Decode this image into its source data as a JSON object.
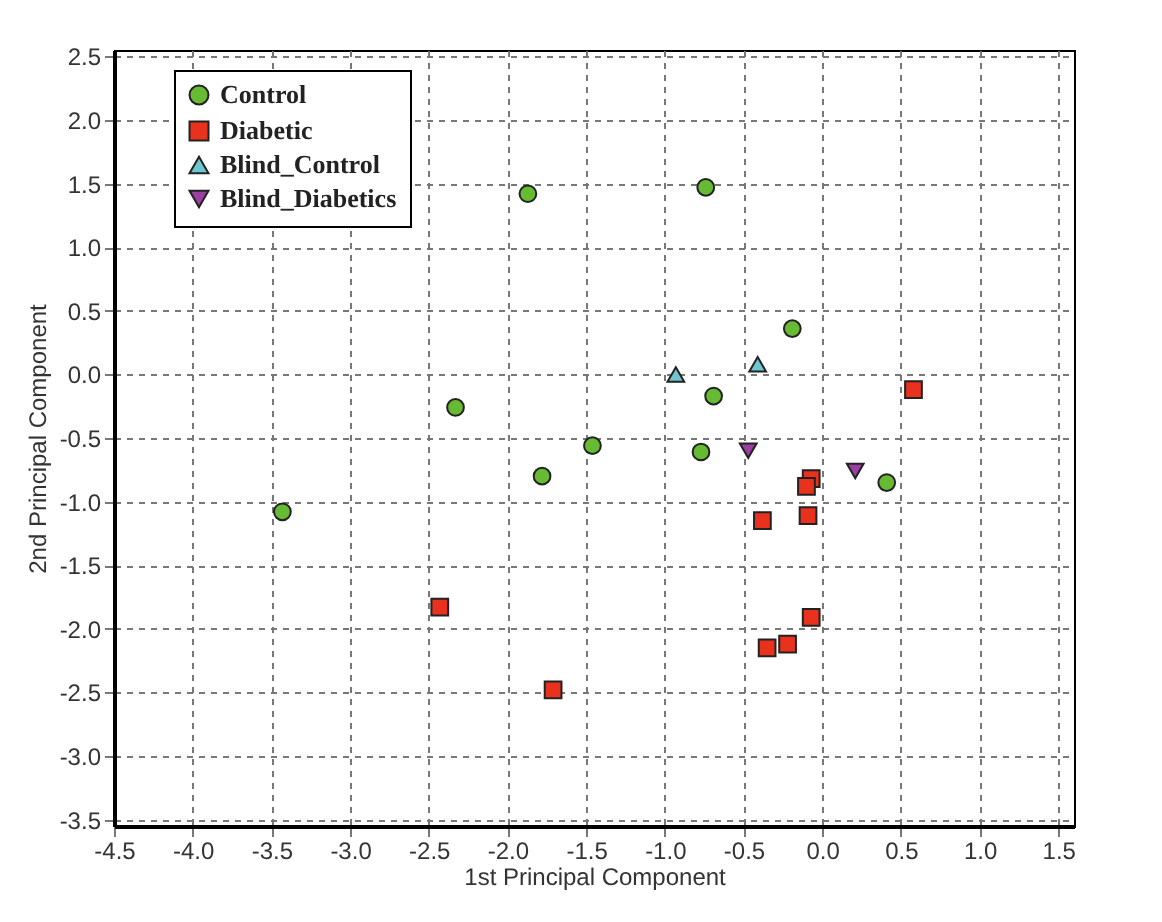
{
  "chart_data": {
    "type": "scatter",
    "xlabel": "1st Principal Component",
    "ylabel": "2nd Principal Component",
    "xlim": [
      -4.5,
      1.6
    ],
    "ylim": [
      -3.55,
      2.55
    ],
    "xticks": [
      {
        "value": -4.5,
        "label": "-4.5"
      },
      {
        "value": -4,
        "label": "-4.0"
      },
      {
        "value": -3.5,
        "label": "-3.5"
      },
      {
        "value": -3,
        "label": "-3.0"
      },
      {
        "value": -2.5,
        "label": "-2.5"
      },
      {
        "value": -2,
        "label": "-2.0"
      },
      {
        "value": -1.5,
        "label": "-1.5"
      },
      {
        "value": -1,
        "label": "-1.0"
      },
      {
        "value": -0.5,
        "label": "-0.5"
      },
      {
        "value": 0,
        "label": "0.0"
      },
      {
        "value": 0.5,
        "label": "0.5"
      },
      {
        "value": 1,
        "label": "1.0"
      },
      {
        "value": 1.5,
        "label": "1.5"
      }
    ],
    "yticks": [
      {
        "value": -3.5,
        "label": "-3.5"
      },
      {
        "value": -3,
        "label": "-3.0"
      },
      {
        "value": -2.5,
        "label": "-2.5"
      },
      {
        "value": -2,
        "label": "-2.0"
      },
      {
        "value": -1.5,
        "label": "-1.5"
      },
      {
        "value": -1,
        "label": "-1.0"
      },
      {
        "value": -0.5,
        "label": "-0.5"
      },
      {
        "value": 0,
        "label": "0.0"
      },
      {
        "value": 0.5,
        "label": "0.5"
      },
      {
        "value": 1,
        "label": "1.0"
      },
      {
        "value": 1.5,
        "label": "1.5"
      },
      {
        "value": 2,
        "label": "2.0"
      },
      {
        "value": 2.5,
        "label": "2.5"
      }
    ],
    "grid": true,
    "legend": "top left",
    "series": [
      {
        "name": "Control",
        "color": "#66bb33",
        "marker": "circle",
        "x": [
          -1.87,
          -0.74,
          -0.19,
          -0.69,
          -2.33,
          -1.46,
          -1.78,
          -0.77,
          -3.43,
          0.41
        ],
        "values": [
          1.42,
          1.47,
          0.36,
          -0.17,
          -0.26,
          -0.56,
          -0.8,
          -0.61,
          -1.08,
          -0.85
        ]
      },
      {
        "name": "Diabetic",
        "color": "#e8321e",
        "marker": "square",
        "x": [
          0.58,
          -0.07,
          -0.1,
          -0.38,
          -0.09,
          -2.43,
          -1.71,
          -0.07,
          -0.22,
          -0.35
        ],
        "values": [
          -0.12,
          -0.82,
          -0.88,
          -1.15,
          -1.11,
          -1.83,
          -2.48,
          -1.91,
          -2.12,
          -2.15
        ]
      },
      {
        "name": "Blind_Control",
        "color": "#6ec6cf",
        "marker": "triangle",
        "x": [
          -0.93,
          -0.41
        ],
        "values": [
          0.0,
          0.08
        ]
      },
      {
        "name": "Blind_Diabetics",
        "color": "#9b3fa0",
        "marker": "triangle-down",
        "x": [
          -0.47,
          0.21
        ],
        "values": [
          -0.6,
          -0.76
        ]
      }
    ]
  }
}
